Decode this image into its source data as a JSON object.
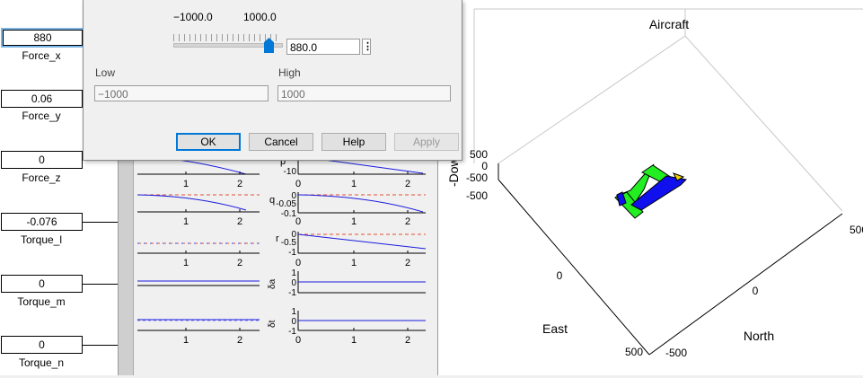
{
  "blocks": [
    {
      "value": "880",
      "label": "Force_x"
    },
    {
      "value": "0.06",
      "label": "Force_y"
    },
    {
      "value": "0",
      "label": "Force_z"
    },
    {
      "value": "-0.076",
      "label": "Torque_l"
    },
    {
      "value": "0",
      "label": "Torque_m"
    },
    {
      "value": "0",
      "label": "Torque_n"
    }
  ],
  "dialog": {
    "slider_min": "−1000.0",
    "slider_max": "1000.0",
    "value": "880.0",
    "low_label": "Low",
    "low_value": "−1000",
    "high_label": "High",
    "high_value": "1000",
    "ok": "OK",
    "cancel": "Cancel",
    "help": "Help",
    "apply": "Apply"
  },
  "scopes": {
    "xticks": [
      "1",
      "2"
    ],
    "p_label": "p",
    "p_ticks": [
      "0",
      "-10"
    ],
    "q_label": "q",
    "q_ticks": [
      "0",
      "-0.05",
      "-0.1"
    ],
    "r_label": "r",
    "r_ticks": [
      "0",
      "-0.5",
      "-1"
    ],
    "da_label": "δa",
    "dt_label": "δt",
    "d_ticks": [
      "1",
      "0",
      "-1"
    ],
    "x_ticks_full": [
      "0",
      "1",
      "2"
    ]
  },
  "view3d": {
    "title": "Aircraft",
    "zlabel": "-Down",
    "xlabel": "East",
    "ylabel": "North",
    "zticks": [
      "500",
      "0",
      "-500",
      "-500"
    ],
    "east_ticks": [
      "0",
      "500"
    ],
    "north_ticks": [
      "0",
      "-500"
    ],
    "right_tick": "500",
    "colors": {
      "wing": "#22ee22",
      "fuselage": "#1010ee",
      "nose": "#f0d000"
    }
  }
}
